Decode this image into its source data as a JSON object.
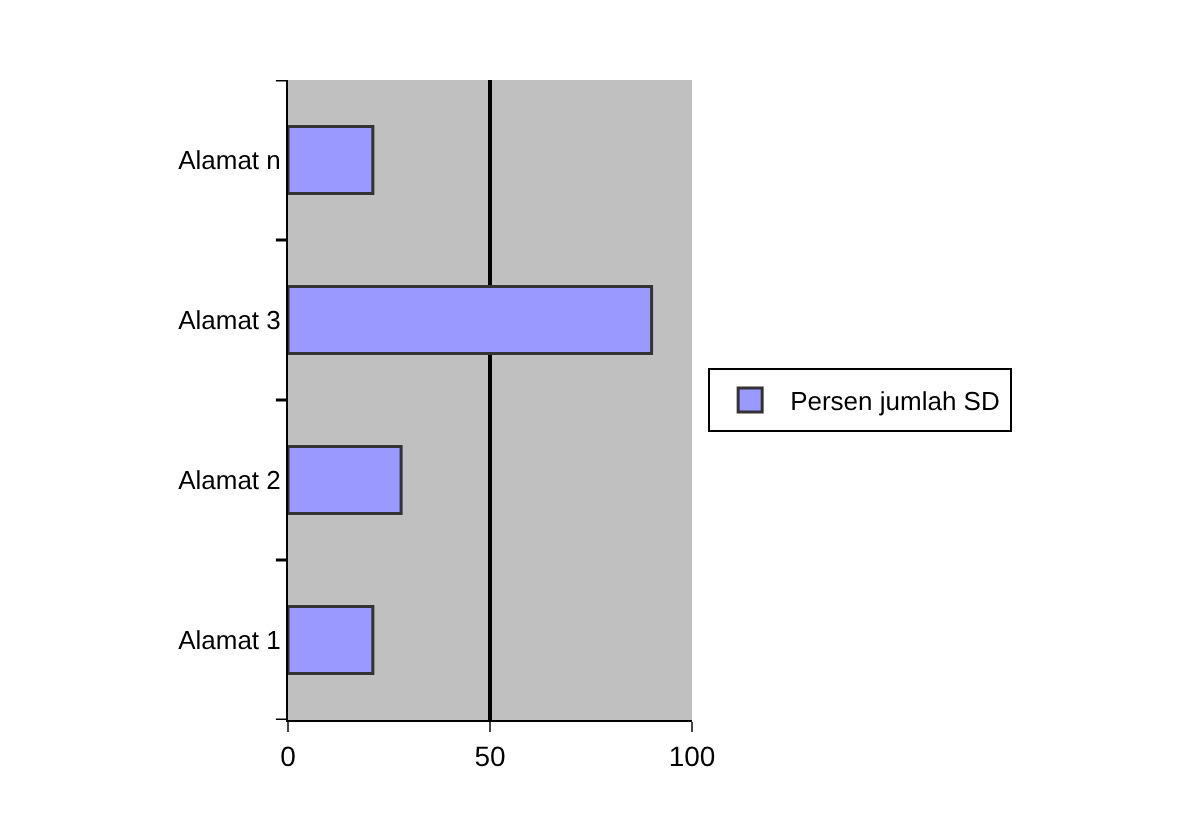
{
  "chart_data": {
    "type": "bar",
    "orientation": "horizontal",
    "categories": [
      "Alamat n",
      "Alamat 3",
      "Alamat 2",
      "Alamat 1"
    ],
    "series": [
      {
        "name": "Persen jumlah SD",
        "color": "#9999ff",
        "values": [
          21,
          90,
          28,
          21
        ]
      }
    ],
    "xlim": [
      0,
      100
    ],
    "xticks": [
      0,
      50,
      100
    ],
    "grid": "x",
    "legend": "right"
  }
}
